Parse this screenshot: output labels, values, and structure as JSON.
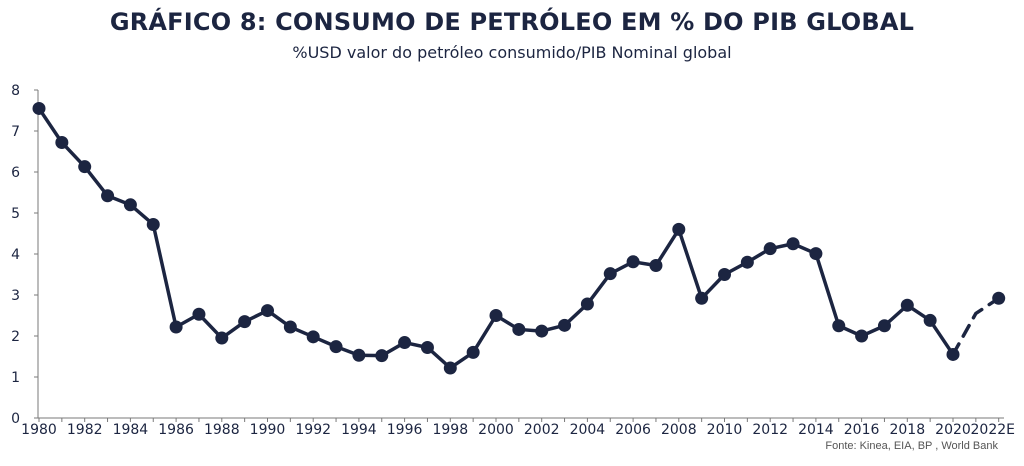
{
  "chart_data": {
    "type": "line",
    "title": "GRÁFICO 8: CONSUMO DE PETRÓLEO EM % DO PIB GLOBAL",
    "subtitle": "%USD valor do petróleo consumido/PIB Nominal global",
    "xlabel": "",
    "ylabel": "",
    "ylim": [
      0,
      8
    ],
    "yticks": [
      "0",
      "1",
      "2",
      "3",
      "4",
      "5",
      "6",
      "7",
      "8"
    ],
    "x": [
      1980,
      1981,
      1982,
      1983,
      1984,
      1985,
      1986,
      1987,
      1988,
      1989,
      1990,
      1991,
      1992,
      1993,
      1994,
      1995,
      1996,
      1997,
      1998,
      1999,
      2000,
      2001,
      2002,
      2003,
      2004,
      2005,
      2006,
      2007,
      2008,
      2009,
      2010,
      2011,
      2012,
      2013,
      2014,
      2015,
      2016,
      2017,
      2018,
      2019,
      2020,
      2021,
      2022
    ],
    "xticklabels": [
      "1980",
      "1982",
      "1984",
      "1986",
      "1988",
      "1990",
      "1992",
      "1994",
      "1996",
      "1998",
      "2000",
      "2002",
      "2004",
      "2006",
      "2008",
      "2010",
      "2012",
      "2014",
      "2016",
      "2018",
      "2020",
      "2022E"
    ],
    "series": [
      {
        "values": [
          7.55,
          6.72,
          6.13,
          5.42,
          5.2,
          4.72,
          2.22,
          2.53,
          1.95,
          2.35,
          2.62,
          2.22,
          1.98,
          1.74,
          1.53,
          1.52,
          1.84,
          1.72,
          1.22,
          1.6,
          2.5,
          2.16,
          2.12,
          2.26,
          2.78,
          3.52,
          3.81,
          3.72,
          4.6,
          2.92,
          3.5,
          3.8,
          4.13,
          4.25,
          4.01,
          2.25,
          2.0,
          2.25,
          2.75,
          2.38,
          1.55,
          2.55,
          2.92
        ],
        "color": "#1c2541"
      }
    ],
    "grid": false,
    "legend": "none",
    "source": "Fonte: Kinea,  EIA, BP , World Bank"
  }
}
